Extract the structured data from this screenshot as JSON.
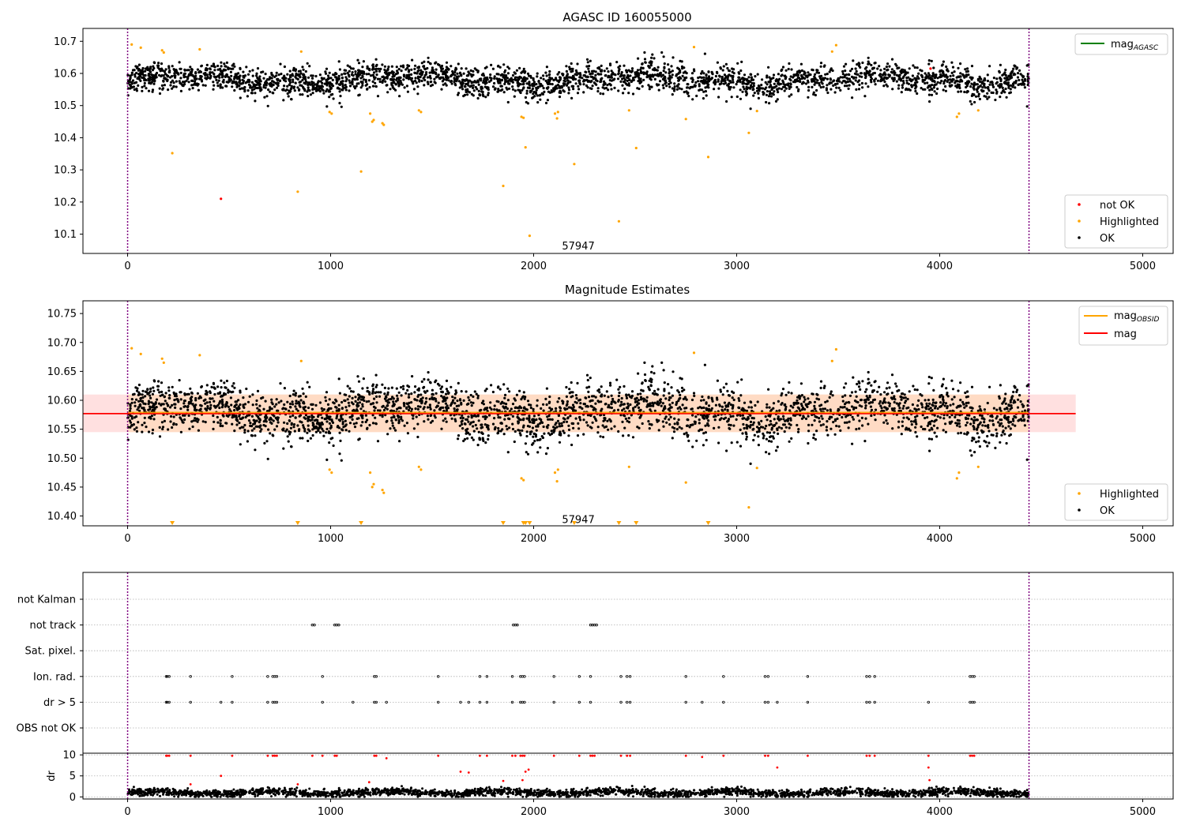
{
  "chart_data": [
    {
      "type": "scatter",
      "title": "AGASC ID 160055000",
      "xlim": [
        -220,
        5150
      ],
      "ylim": [
        10.04,
        10.74
      ],
      "yticks": [
        10.1,
        10.2,
        10.3,
        10.4,
        10.5,
        10.6,
        10.7
      ],
      "xticks": [
        0,
        1000,
        2000,
        3000,
        4000,
        5000
      ],
      "grid": false,
      "vlines": [
        0,
        4440
      ],
      "annotation": {
        "text": "57947",
        "x": 2220,
        "y": 10.062
      },
      "legend_lines": [
        {
          "label": "mag",
          "sub": "AGASC",
          "color": "#008000"
        }
      ],
      "legend_points": [
        {
          "label": "not OK",
          "color": "#ff0000"
        },
        {
          "label": "Highlighted",
          "color": "#ffa500"
        },
        {
          "label": "OK",
          "color": "#000000"
        }
      ],
      "series": [
        {
          "name": "not OK",
          "color": "#ff0000",
          "x": [
            460,
            3955
          ],
          "y": [
            10.21,
            10.615
          ]
        },
        {
          "name": "Highlighted",
          "color": "#ffa500",
          "x": [
            20,
            65,
            170,
            178,
            220,
            355,
            838,
            855,
            995,
            1005,
            1150,
            1195,
            1205,
            1212,
            1255,
            1262,
            1435,
            1445,
            1850,
            1940,
            1950,
            1960,
            1980,
            2105,
            2115,
            2120,
            2200,
            2420,
            2470,
            2505,
            2750,
            2790,
            2860,
            3060,
            3100,
            3470,
            3490,
            4085,
            4095,
            4190
          ],
          "y": [
            10.69,
            10.68,
            10.672,
            10.665,
            10.352,
            10.675,
            10.232,
            10.668,
            10.48,
            10.475,
            10.295,
            10.475,
            10.45,
            10.455,
            10.445,
            10.44,
            10.485,
            10.48,
            10.25,
            10.465,
            10.462,
            10.37,
            10.095,
            10.475,
            10.46,
            10.48,
            10.318,
            10.14,
            10.485,
            10.368,
            10.458,
            10.682,
            10.34,
            10.415,
            10.483,
            10.668,
            10.688,
            10.465,
            10.475,
            10.485
          ]
        }
      ],
      "ok_points": {
        "name": "OK",
        "color": "#000000",
        "n": 3000,
        "x_range": [
          0,
          4440
        ],
        "center": 10.58,
        "spread": 0.03
      }
    },
    {
      "type": "scatter",
      "title": "Magnitude Estimates",
      "xlim": [
        -220,
        5150
      ],
      "ylim": [
        10.383,
        10.772
      ],
      "yticks": [
        10.4,
        10.45,
        10.5,
        10.55,
        10.6,
        10.65,
        10.7,
        10.75
      ],
      "xticks": [
        0,
        1000,
        2000,
        3000,
        4000,
        5000
      ],
      "grid": false,
      "vlines": [
        0,
        4440
      ],
      "annotation": {
        "text": "57947",
        "x": 2220,
        "y": 10.393
      },
      "band_outer": {
        "x": [
          -220,
          4670
        ],
        "y": [
          10.545,
          10.61
        ],
        "color": "#ffcccc"
      },
      "band_inner": {
        "x": [
          0,
          4440
        ],
        "y": [
          10.545,
          10.61
        ],
        "color": "#ffd9b8"
      },
      "mag_line": {
        "label": "mag",
        "y": 10.577,
        "x": [
          -220,
          4670
        ],
        "color": "#ff0000"
      },
      "obsid_line": {
        "label": "mag",
        "sub": "OBSID",
        "y": 10.579,
        "x": [
          0,
          4440
        ],
        "color": "#ffa500"
      },
      "legend_points": [
        {
          "label": "Highlighted",
          "color": "#ffa500"
        },
        {
          "label": "OK",
          "color": "#000000"
        }
      ],
      "lower_limit_markers": {
        "color": "#ffa500",
        "x": [
          220,
          838,
          1150,
          1850,
          1950,
          1960,
          1980,
          2200,
          2420,
          2505,
          2860
        ]
      },
      "series": [
        {
          "name": "Highlighted",
          "color": "#ffa500",
          "x": [
            20,
            65,
            170,
            178,
            355,
            855,
            995,
            1005,
            1195,
            1205,
            1212,
            1255,
            1262,
            1435,
            1445,
            1940,
            1950,
            2105,
            2115,
            2120,
            2470,
            2750,
            2790,
            3060,
            3100,
            3470,
            3490,
            4085,
            4095,
            4190
          ],
          "y": [
            10.69,
            10.68,
            10.672,
            10.665,
            10.678,
            10.668,
            10.48,
            10.475,
            10.475,
            10.45,
            10.455,
            10.445,
            10.44,
            10.485,
            10.48,
            10.465,
            10.462,
            10.475,
            10.46,
            10.48,
            10.485,
            10.458,
            10.682,
            10.415,
            10.483,
            10.668,
            10.688,
            10.465,
            10.475,
            10.485
          ]
        }
      ],
      "ok_points": {
        "name": "OK",
        "color": "#000000",
        "n": 3000,
        "x_range": [
          0,
          4440
        ],
        "center": 10.58,
        "spread": 0.03
      }
    },
    {
      "type": "scatter",
      "title": "",
      "xlim": [
        -220,
        5150
      ],
      "xticks": [
        0,
        1000,
        2000,
        3000,
        4000,
        5000
      ],
      "vlines": [
        0,
        4440
      ],
      "flag_rows": [
        "not Kalman",
        "not track",
        "Sat. pixel.",
        "Ion. rad.",
        "dr > 5",
        "OBS not OK"
      ],
      "flags": {
        "not track": [
          910,
          920,
          1020,
          1030,
          1040,
          1900,
          1910,
          1920,
          2280,
          2290,
          2300,
          2310
        ],
        "Ion. rad.": [
          190,
          195,
          205,
          310,
          515,
          690,
          715,
          725,
          735,
          960,
          1215,
          1225,
          1530,
          1735,
          1770,
          1895,
          1935,
          1945,
          1955,
          2100,
          2225,
          2280,
          2430,
          2460,
          2475,
          2750,
          2935,
          3140,
          3155,
          3350,
          3640,
          3655,
          3680,
          4150,
          4160,
          4170
        ],
        "dr > 5": [
          190,
          195,
          205,
          310,
          460,
          515,
          690,
          715,
          725,
          735,
          960,
          1110,
          1215,
          1225,
          1275,
          1530,
          1640,
          1680,
          1735,
          1770,
          1895,
          1935,
          1945,
          1955,
          2100,
          2225,
          2280,
          2430,
          2460,
          2475,
          2750,
          2830,
          2935,
          3140,
          3155,
          3200,
          3350,
          3640,
          3655,
          3680,
          3945,
          4150,
          4160,
          4170
        ]
      },
      "dr_panel": {
        "ylabel": "dr",
        "yticks": [
          0,
          5,
          10
        ],
        "ylim": [
          -0.5,
          10.4
        ],
        "ok_points": {
          "n": 2600,
          "x_range": [
            0,
            4440
          ],
          "center": 1.0,
          "spread": 0.45
        },
        "red_points": {
          "color": "#ff0000",
          "x": [
            190,
            195,
            205,
            310,
            515,
            690,
            715,
            725,
            735,
            910,
            960,
            1020,
            1030,
            1215,
            1225,
            1275,
            1530,
            1735,
            1770,
            1895,
            1910,
            1935,
            1945,
            1955,
            2100,
            2225,
            2280,
            2290,
            2300,
            2430,
            2460,
            2475,
            2750,
            2830,
            2935,
            3140,
            3155,
            3350,
            3640,
            3655,
            3680,
            3945,
            4150,
            4160,
            4170,
            310,
            460,
            838,
            1190,
            1640,
            1680,
            1850,
            1945,
            1960,
            1975,
            3200,
            3945,
            3950
          ],
          "y": [
            9.8,
            9.8,
            9.8,
            9.8,
            9.8,
            9.8,
            9.8,
            9.8,
            9.8,
            9.8,
            9.8,
            9.8,
            9.8,
            9.8,
            9.8,
            9.2,
            9.8,
            9.8,
            9.8,
            9.8,
            9.8,
            9.8,
            9.8,
            9.8,
            9.8,
            9.8,
            9.8,
            9.8,
            9.8,
            9.8,
            9.8,
            9.8,
            9.8,
            9.5,
            9.8,
            9.8,
            9.8,
            9.8,
            9.8,
            9.8,
            9.8,
            9.8,
            9.8,
            9.8,
            9.8,
            3.0,
            5.0,
            3.0,
            3.5,
            6.0,
            5.8,
            3.8,
            4.0,
            6.0,
            6.5,
            7.0,
            7.0,
            4.0
          ]
        }
      }
    }
  ]
}
